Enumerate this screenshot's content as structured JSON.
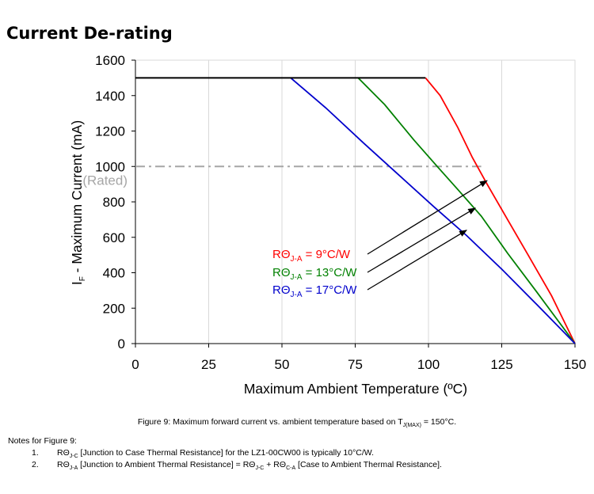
{
  "title": "Current De-rating",
  "chart_data": {
    "type": "line",
    "xlabel": "Maximum Ambient Temperature (ºC)",
    "ylabel_main": "I",
    "ylabel_sub": "F",
    "ylabel_rest": " - Maximum Current (mA)",
    "xlim": [
      0,
      150
    ],
    "ylim": [
      0,
      1600
    ],
    "x_ticks": [
      0,
      25,
      50,
      75,
      100,
      125,
      150
    ],
    "y_ticks": [
      0,
      200,
      400,
      600,
      800,
      1000,
      1200,
      1400,
      1600
    ],
    "grid": {
      "vertical": true,
      "horizontal": false
    },
    "rated": {
      "value": 1000,
      "label": "(Rated)",
      "x_end": 118,
      "color": "#a6a6a6"
    },
    "max_line": {
      "value": 1500,
      "color": "#000000"
    },
    "series": [
      {
        "name_pre": "RΘ",
        "name_sub": "J-A",
        "name_post": " =   9°C/W",
        "color": "#ff0000",
        "points": [
          [
            99,
            1500
          ],
          [
            104,
            1400
          ],
          [
            110,
            1220
          ],
          [
            115,
            1050
          ],
          [
            120,
            900
          ],
          [
            127,
            700
          ],
          [
            134,
            500
          ],
          [
            142,
            270
          ],
          [
            150,
            0
          ]
        ],
        "arrow_to": [
          120,
          920
        ]
      },
      {
        "name_pre": "RΘ",
        "name_sub": "J-A",
        "name_post": " = 13°C/W",
        "color": "#008000",
        "points": [
          [
            76,
            1500
          ],
          [
            85,
            1350
          ],
          [
            95,
            1150
          ],
          [
            103,
            1000
          ],
          [
            110,
            870
          ],
          [
            118,
            720
          ],
          [
            127,
            510
          ],
          [
            137,
            290
          ],
          [
            150,
            0
          ]
        ],
        "arrow_to": [
          116,
          765
        ]
      },
      {
        "name_pre": "RΘ",
        "name_sub": "J-A",
        "name_post": " = 17°C/W",
        "color": "#0000cc",
        "points": [
          [
            53,
            1500
          ],
          [
            65,
            1330
          ],
          [
            78,
            1130
          ],
          [
            90,
            950
          ],
          [
            102,
            770
          ],
          [
            113,
            610
          ],
          [
            125,
            420
          ],
          [
            137,
            220
          ],
          [
            150,
            0
          ]
        ],
        "arrow_to": [
          113,
          640
        ]
      }
    ]
  },
  "caption": {
    "pre": "Figure 9:  Maximum forward current vs. ambient temperature based on T",
    "sub": "J(MAX)",
    "post": " = 150°C."
  },
  "notes": {
    "heading": "Notes for Figure 9:",
    "items": [
      {
        "num": "1.",
        "p1": "RΘ",
        "s1": "J-C",
        "p2": " [Junction to Case Thermal Resistance] for the LZ1-00CW00 is typically 10°C/W."
      },
      {
        "num": "2.",
        "p1": "RΘ",
        "s1": "J-A",
        "p2": " [Junction to Ambient Thermal Resistance] = RΘ",
        "s2": "J-C",
        "p3": " + RΘ",
        "s3": "C-A",
        "p4": " [Case to Ambient Thermal Resistance]."
      }
    ]
  }
}
